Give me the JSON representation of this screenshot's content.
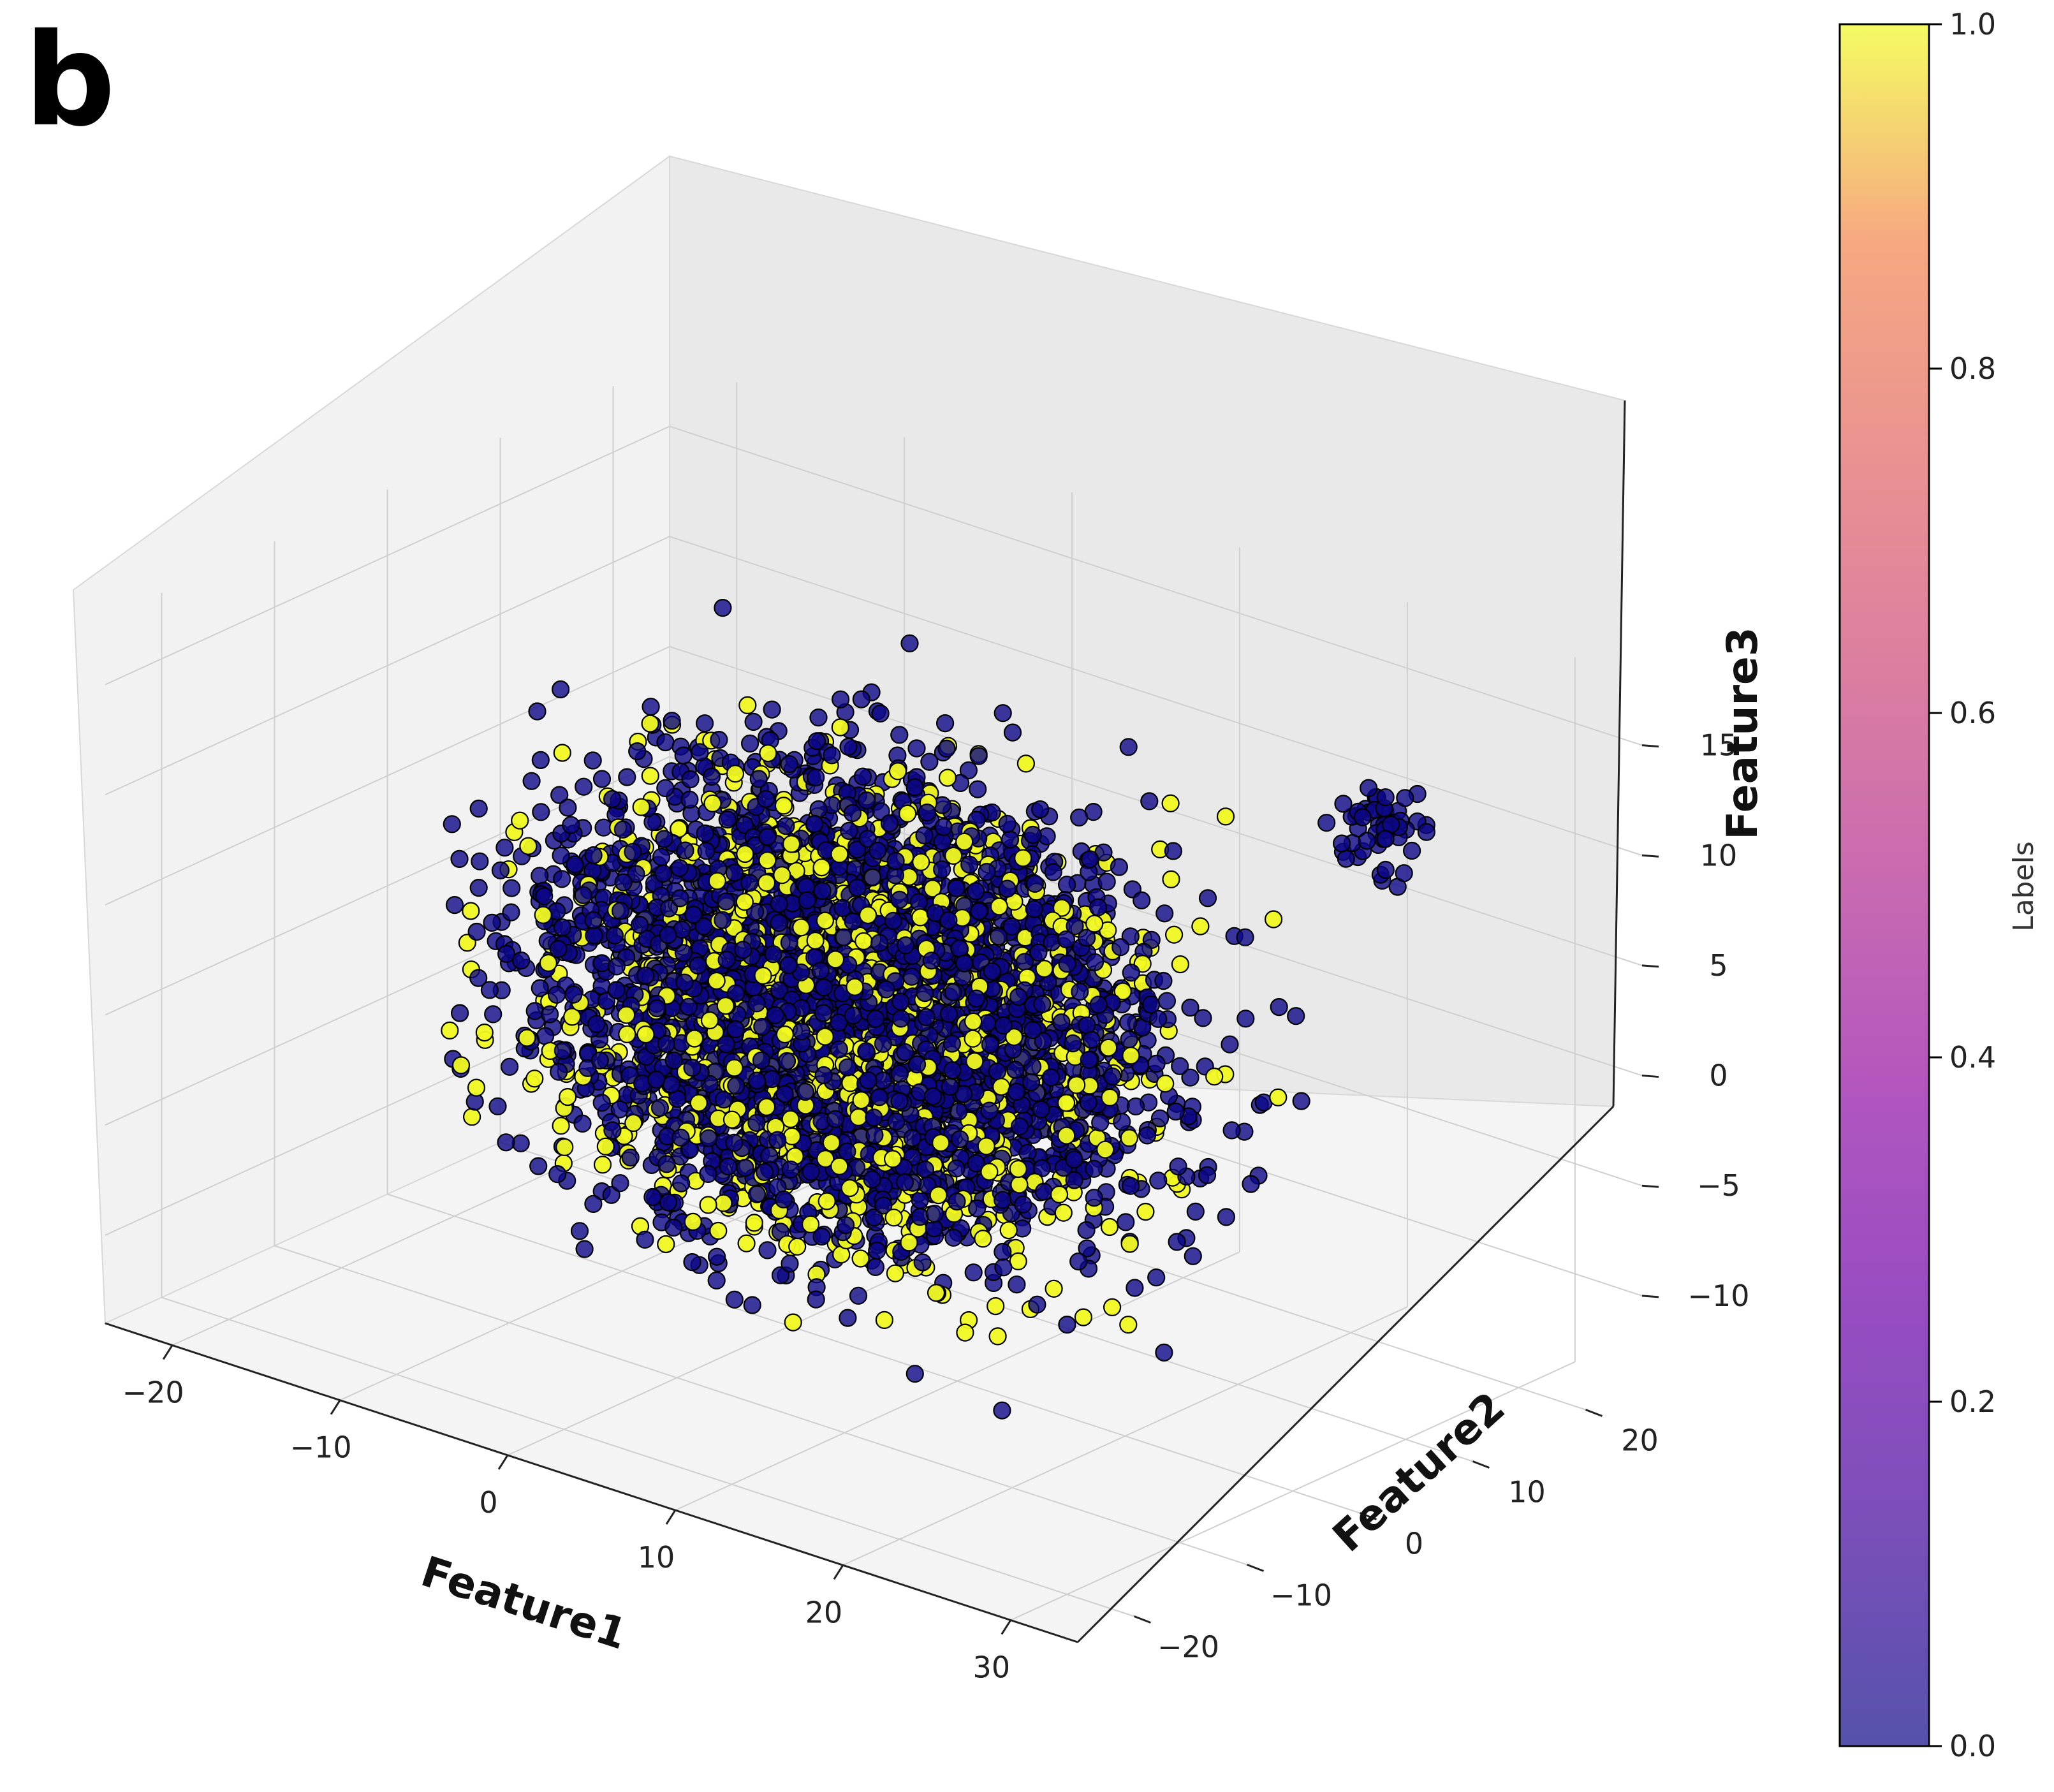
{
  "panel_label": "b",
  "chart_data": {
    "type": "scatter",
    "projection": "3d",
    "title": "",
    "xlabel": "Feature1",
    "ylabel": "Feature2",
    "zlabel": "Feature3",
    "xlim": [
      -24,
      34
    ],
    "ylim": [
      -25,
      25
    ],
    "zlim": [
      -14,
      18
    ],
    "x_ticks": [
      "−20",
      "−10",
      "0",
      "10",
      "20",
      "30"
    ],
    "x_tick_values": [
      -20,
      -10,
      0,
      10,
      20,
      30
    ],
    "y_ticks": [
      "−20",
      "−10",
      "0",
      "10",
      "20"
    ],
    "y_tick_values": [
      -20,
      -10,
      0,
      10,
      20
    ],
    "z_ticks": [
      "−10",
      "−5",
      "0",
      "5",
      "10",
      "15"
    ],
    "z_tick_values": [
      -10,
      -5,
      0,
      5,
      10,
      15
    ],
    "grid": true,
    "colorbar": {
      "label": "Labels",
      "colormap": "plasma",
      "alpha": 0.7,
      "min": 0.0,
      "max": 1.0,
      "ticks": [
        "0.0",
        "0.2",
        "0.4",
        "0.6",
        "0.8",
        "1.0"
      ],
      "tick_values": [
        0.0,
        0.2,
        0.4,
        0.6,
        0.8,
        1.0
      ]
    },
    "marker_colors": {
      "label_0": "#0d0887",
      "label_1": "#f0f921",
      "edge": "#000000"
    },
    "clusters": [
      {
        "label_value": 0,
        "share_of_points": 0.72,
        "x_range": [
          -18,
          26
        ],
        "y_range": [
          -20,
          20
        ],
        "z_range": [
          -12,
          15
        ],
        "description_of_shape": "main blob"
      },
      {
        "label_value": 1,
        "share_of_points": 0.28,
        "x_range": [
          -18,
          26
        ],
        "y_range": [
          -20,
          20
        ],
        "z_range": [
          -12,
          15
        ],
        "description_of_shape": "main blob"
      },
      {
        "label_value": 0,
        "share_of_points": 0.01,
        "x_range": [
          20,
          28
        ],
        "y_range": [
          14,
          20
        ],
        "z_range": [
          8,
          13
        ],
        "description_of_shape": "small separate island"
      }
    ]
  }
}
